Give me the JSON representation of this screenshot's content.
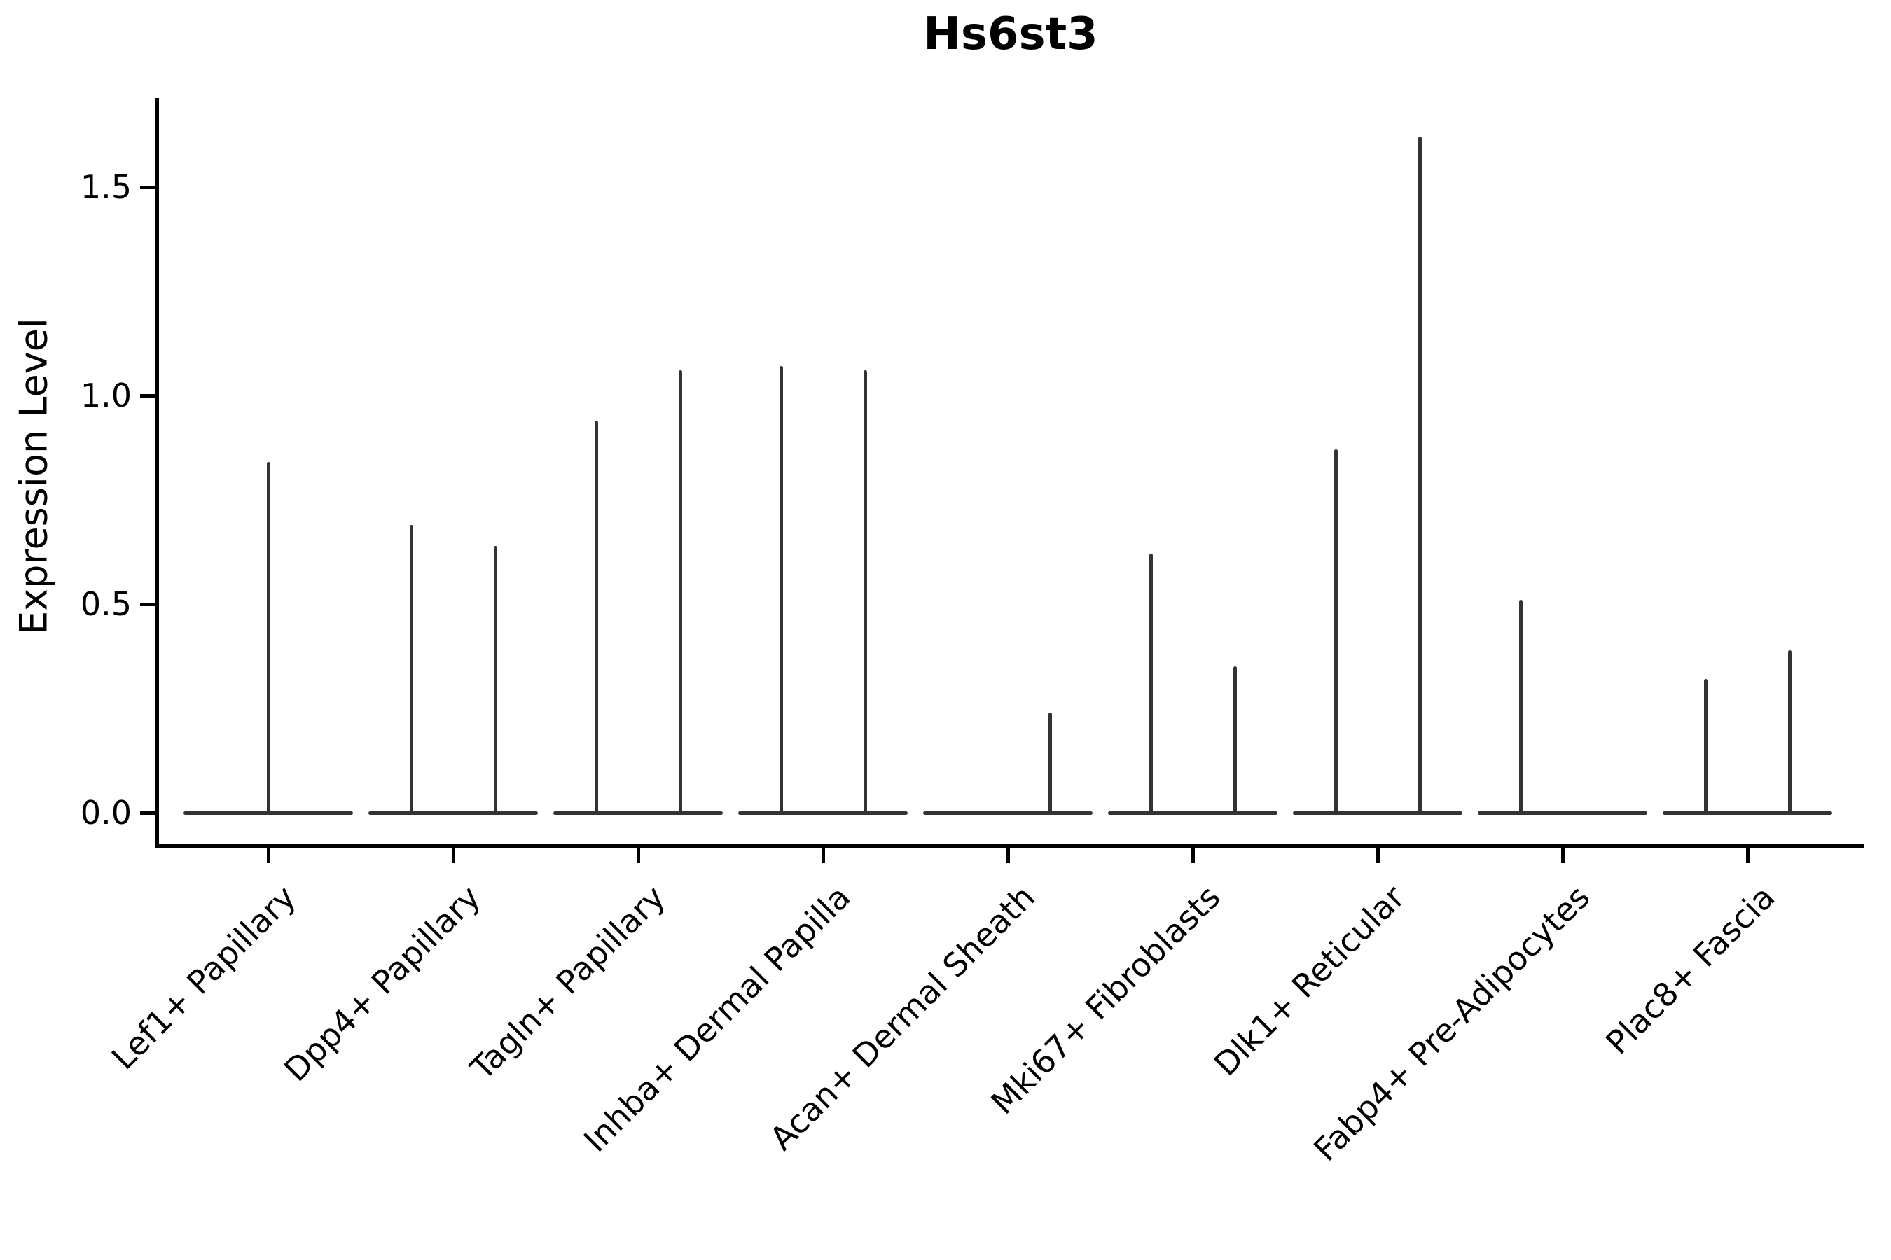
{
  "chart_data": {
    "type": "violin",
    "title": "Hs6st3",
    "xlabel": "",
    "ylabel": "Expression Level",
    "ylim": [
      0,
      1.71
    ],
    "yticks": [
      0.0,
      0.5,
      1.0,
      1.5
    ],
    "ytick_labels": [
      "0.0",
      "0.5",
      "1.0",
      "1.5"
    ],
    "grid": false,
    "legend": "none",
    "line_color": "#333333",
    "axis_color": "#000000",
    "description": "Violin plot of Hs6st3 expression; each violin is collapsed to a flat line at 0 with thin vertical spikes up to the maximum expression value. Most categories contain two adjacent sub-violins.",
    "categories": [
      "Lef1+ Papillary",
      "Dpp4+ Papillary",
      "Tagln+ Papillary",
      "Inhba+ Dermal Papilla",
      "Acan+ Dermal Sheath",
      "Mki67+ Fibroblasts",
      "Dlk1+ Reticular",
      "Fabp4+ Pre-Adipocytes",
      "Plac8+ Fascia"
    ],
    "series": [
      {
        "category": "Lef1+ Papillary",
        "baseline_value": 0.0,
        "violins": [
          {
            "position": "center",
            "max": 0.84
          }
        ]
      },
      {
        "category": "Dpp4+ Papillary",
        "baseline_value": 0.0,
        "violins": [
          {
            "position": "left",
            "max": 0.69
          },
          {
            "position": "right",
            "max": 0.64
          }
        ]
      },
      {
        "category": "Tagln+ Papillary",
        "baseline_value": 0.0,
        "violins": [
          {
            "position": "left",
            "max": 0.94
          },
          {
            "position": "right",
            "max": 1.06
          }
        ]
      },
      {
        "category": "Inhba+ Dermal Papilla",
        "baseline_value": 0.0,
        "violins": [
          {
            "position": "left",
            "max": 1.07
          },
          {
            "position": "right",
            "max": 1.06
          }
        ]
      },
      {
        "category": "Acan+ Dermal Sheath",
        "baseline_value": 0.0,
        "violins": [
          {
            "position": "right",
            "max": 0.24
          }
        ]
      },
      {
        "category": "Mki67+ Fibroblasts",
        "baseline_value": 0.0,
        "violins": [
          {
            "position": "left",
            "max": 0.62
          },
          {
            "position": "right",
            "max": 0.35
          }
        ]
      },
      {
        "category": "Dlk1+ Reticular",
        "baseline_value": 0.0,
        "violins": [
          {
            "position": "left",
            "max": 0.87
          },
          {
            "position": "right",
            "max": 1.62
          }
        ]
      },
      {
        "category": "Fabp4+ Pre-Adipocytes",
        "baseline_value": 0.0,
        "violins": [
          {
            "position": "left",
            "max": 0.51
          }
        ]
      },
      {
        "category": "Plac8+ Fascia",
        "baseline_value": 0.0,
        "violins": [
          {
            "position": "left",
            "max": 0.32
          },
          {
            "position": "right",
            "max": 0.39
          }
        ]
      }
    ]
  }
}
